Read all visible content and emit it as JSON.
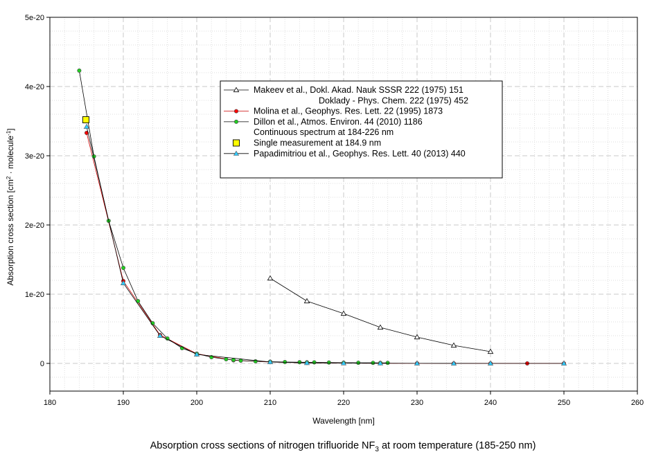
{
  "chart_data": {
    "type": "scatter",
    "xlabel": "Wavelength [nm]",
    "ylabel_parts": {
      "pre": "Absorption cross section [cm",
      "sup1": "2",
      "mid": " · molecule",
      "sup2": "-1",
      "post": "]"
    },
    "xlim": [
      180,
      260
    ],
    "ylim": [
      -4e-21,
      5e-20
    ],
    "x_ticks": [
      180,
      190,
      200,
      210,
      220,
      230,
      240,
      250,
      260
    ],
    "y_ticks": [
      {
        "value": 0,
        "label": "0"
      },
      {
        "value": 1e-20,
        "label": "1e-20"
      },
      {
        "value": 2e-20,
        "label": "2e-20"
      },
      {
        "value": 3e-20,
        "label": "3e-20"
      },
      {
        "value": 4e-20,
        "label": "4e-20"
      },
      {
        "value": 5e-20,
        "label": "5e-20"
      }
    ],
    "grid": true,
    "legend_placement": "upper-middle",
    "series": [
      {
        "key": "makeev",
        "name_lines": [
          "Makeev et al., Dokl. Akad. Nauk SSSR 222 (1975) 151",
          "Doklady - Phys. Chem. 222 (1975) 452"
        ],
        "marker": "open-triangle",
        "color": "#000000",
        "line": true,
        "x": [
          210,
          215,
          220,
          225,
          230,
          235,
          240
        ],
        "y": [
          1.23e-20,
          9e-21,
          7.2e-21,
          5.2e-21,
          3.8e-21,
          2.6e-21,
          1.7e-21
        ]
      },
      {
        "key": "molina",
        "name_lines": [
          "Molina et al., Geophys. Res. Lett. 22 (1995) 1873"
        ],
        "marker": "circle",
        "color": "#ff0000",
        "line": true,
        "x": [
          185,
          190,
          195,
          200,
          205,
          210,
          215,
          220,
          225,
          230,
          235,
          240,
          245,
          250
        ],
        "y": [
          3.33e-20,
          1.19e-20,
          4.1e-21,
          1.4e-21,
          4.5e-22,
          2e-22,
          8e-23,
          4e-23,
          2e-23,
          1e-23,
          5e-24,
          3e-24,
          2e-24,
          1e-24
        ]
      },
      {
        "key": "dillon",
        "name_lines": [
          "Dillon et al., Atmos. Environ. 44 (2010) 1186",
          "Continuous spectrum at 184-226 nm"
        ],
        "marker": "circle",
        "color": "#22cc22",
        "line": true,
        "x": [
          184,
          186,
          188,
          190,
          192,
          194,
          196,
          198,
          200,
          202,
          204,
          205,
          206,
          208,
          210,
          212,
          214,
          215,
          216,
          218,
          220,
          222,
          224,
          225,
          226
        ],
        "y": [
          4.23e-20,
          2.99e-20,
          2.06e-20,
          1.38e-20,
          9e-21,
          5.8e-21,
          3.6e-21,
          2.2e-21,
          1.4e-21,
          9e-22,
          6e-22,
          5e-22,
          4e-22,
          3e-22,
          2.5e-22,
          2e-22,
          1.7e-22,
          1.6e-22,
          1.5e-22,
          1.2e-22,
          1e-22,
          9e-23,
          8e-23,
          7e-23,
          7e-23
        ]
      },
      {
        "key": "single",
        "name_lines": [
          "Single measurement at 184.9 nm"
        ],
        "marker": "square",
        "color": "#ffff00",
        "line": false,
        "x": [
          184.9
        ],
        "y": [
          3.52e-20
        ]
      },
      {
        "key": "papadimitriou",
        "name_lines": [
          "Papadimitriou et al., Geophys. Res. Lett. 40 (2013) 440"
        ],
        "marker": "filled-triangle",
        "color": "#33ccff",
        "line": true,
        "x": [
          185,
          190,
          195,
          200,
          210,
          215,
          220,
          225,
          230,
          235,
          240,
          250
        ],
        "y": [
          3.42e-20,
          1.16e-20,
          4e-21,
          1.3e-21,
          2e-22,
          8e-23,
          4e-23,
          2e-23,
          1e-23,
          5e-24,
          3e-24,
          1e-24
        ]
      }
    ]
  },
  "caption": {
    "pre": "Absorption cross sections of nitrogen trifluoride NF",
    "sub": "3",
    "post": " at room temperature (185-250 nm)"
  }
}
